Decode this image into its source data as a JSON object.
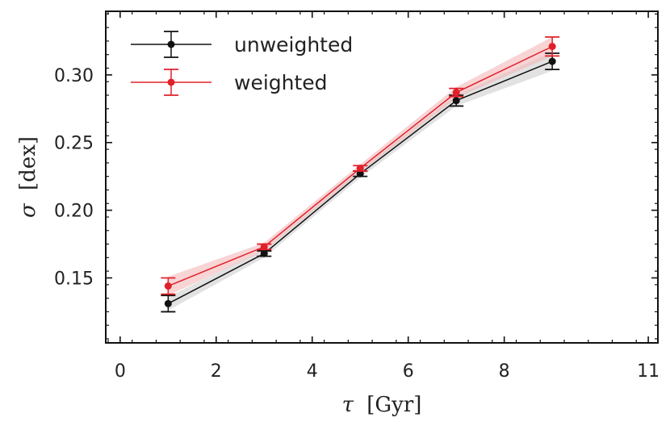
{
  "chart_data": {
    "type": "line",
    "title": "",
    "xlabel": {
      "symbol": "τ",
      "unit": "[Gyr]"
    },
    "ylabel": {
      "symbol": "σ",
      "unit": "[dex]"
    },
    "xlim": [
      -0.3,
      11.2
    ],
    "ylim": [
      0.102,
      0.347
    ],
    "xticks": [
      0,
      2,
      4,
      6,
      8,
      11
    ],
    "yticks": [
      0.15,
      0.2,
      0.25,
      0.3
    ],
    "ytick_labels": [
      "0.15",
      "0.20",
      "0.25",
      "0.30"
    ],
    "legend_position": "top-left",
    "series": [
      {
        "name": "unweighted",
        "color": "#111111",
        "band_color": "#cfcfcf",
        "x": [
          1,
          3,
          5,
          7,
          9
        ],
        "y": [
          0.131,
          0.168,
          0.227,
          0.281,
          0.31
        ],
        "yerr": [
          0.006,
          0.002,
          0.002,
          0.004,
          0.006
        ],
        "band": [
          0.005,
          0.003,
          0.003,
          0.004,
          0.007
        ]
      },
      {
        "name": "weighted",
        "color": "#e0202a",
        "band_color": "#f3b7b9",
        "x": [
          1,
          3,
          5,
          7,
          9
        ],
        "y": [
          0.144,
          0.173,
          0.231,
          0.287,
          0.321
        ],
        "yerr": [
          0.006,
          0.002,
          0.002,
          0.003,
          0.007
        ],
        "band": [
          0.007,
          0.003,
          0.003,
          0.004,
          0.007
        ]
      }
    ]
  }
}
